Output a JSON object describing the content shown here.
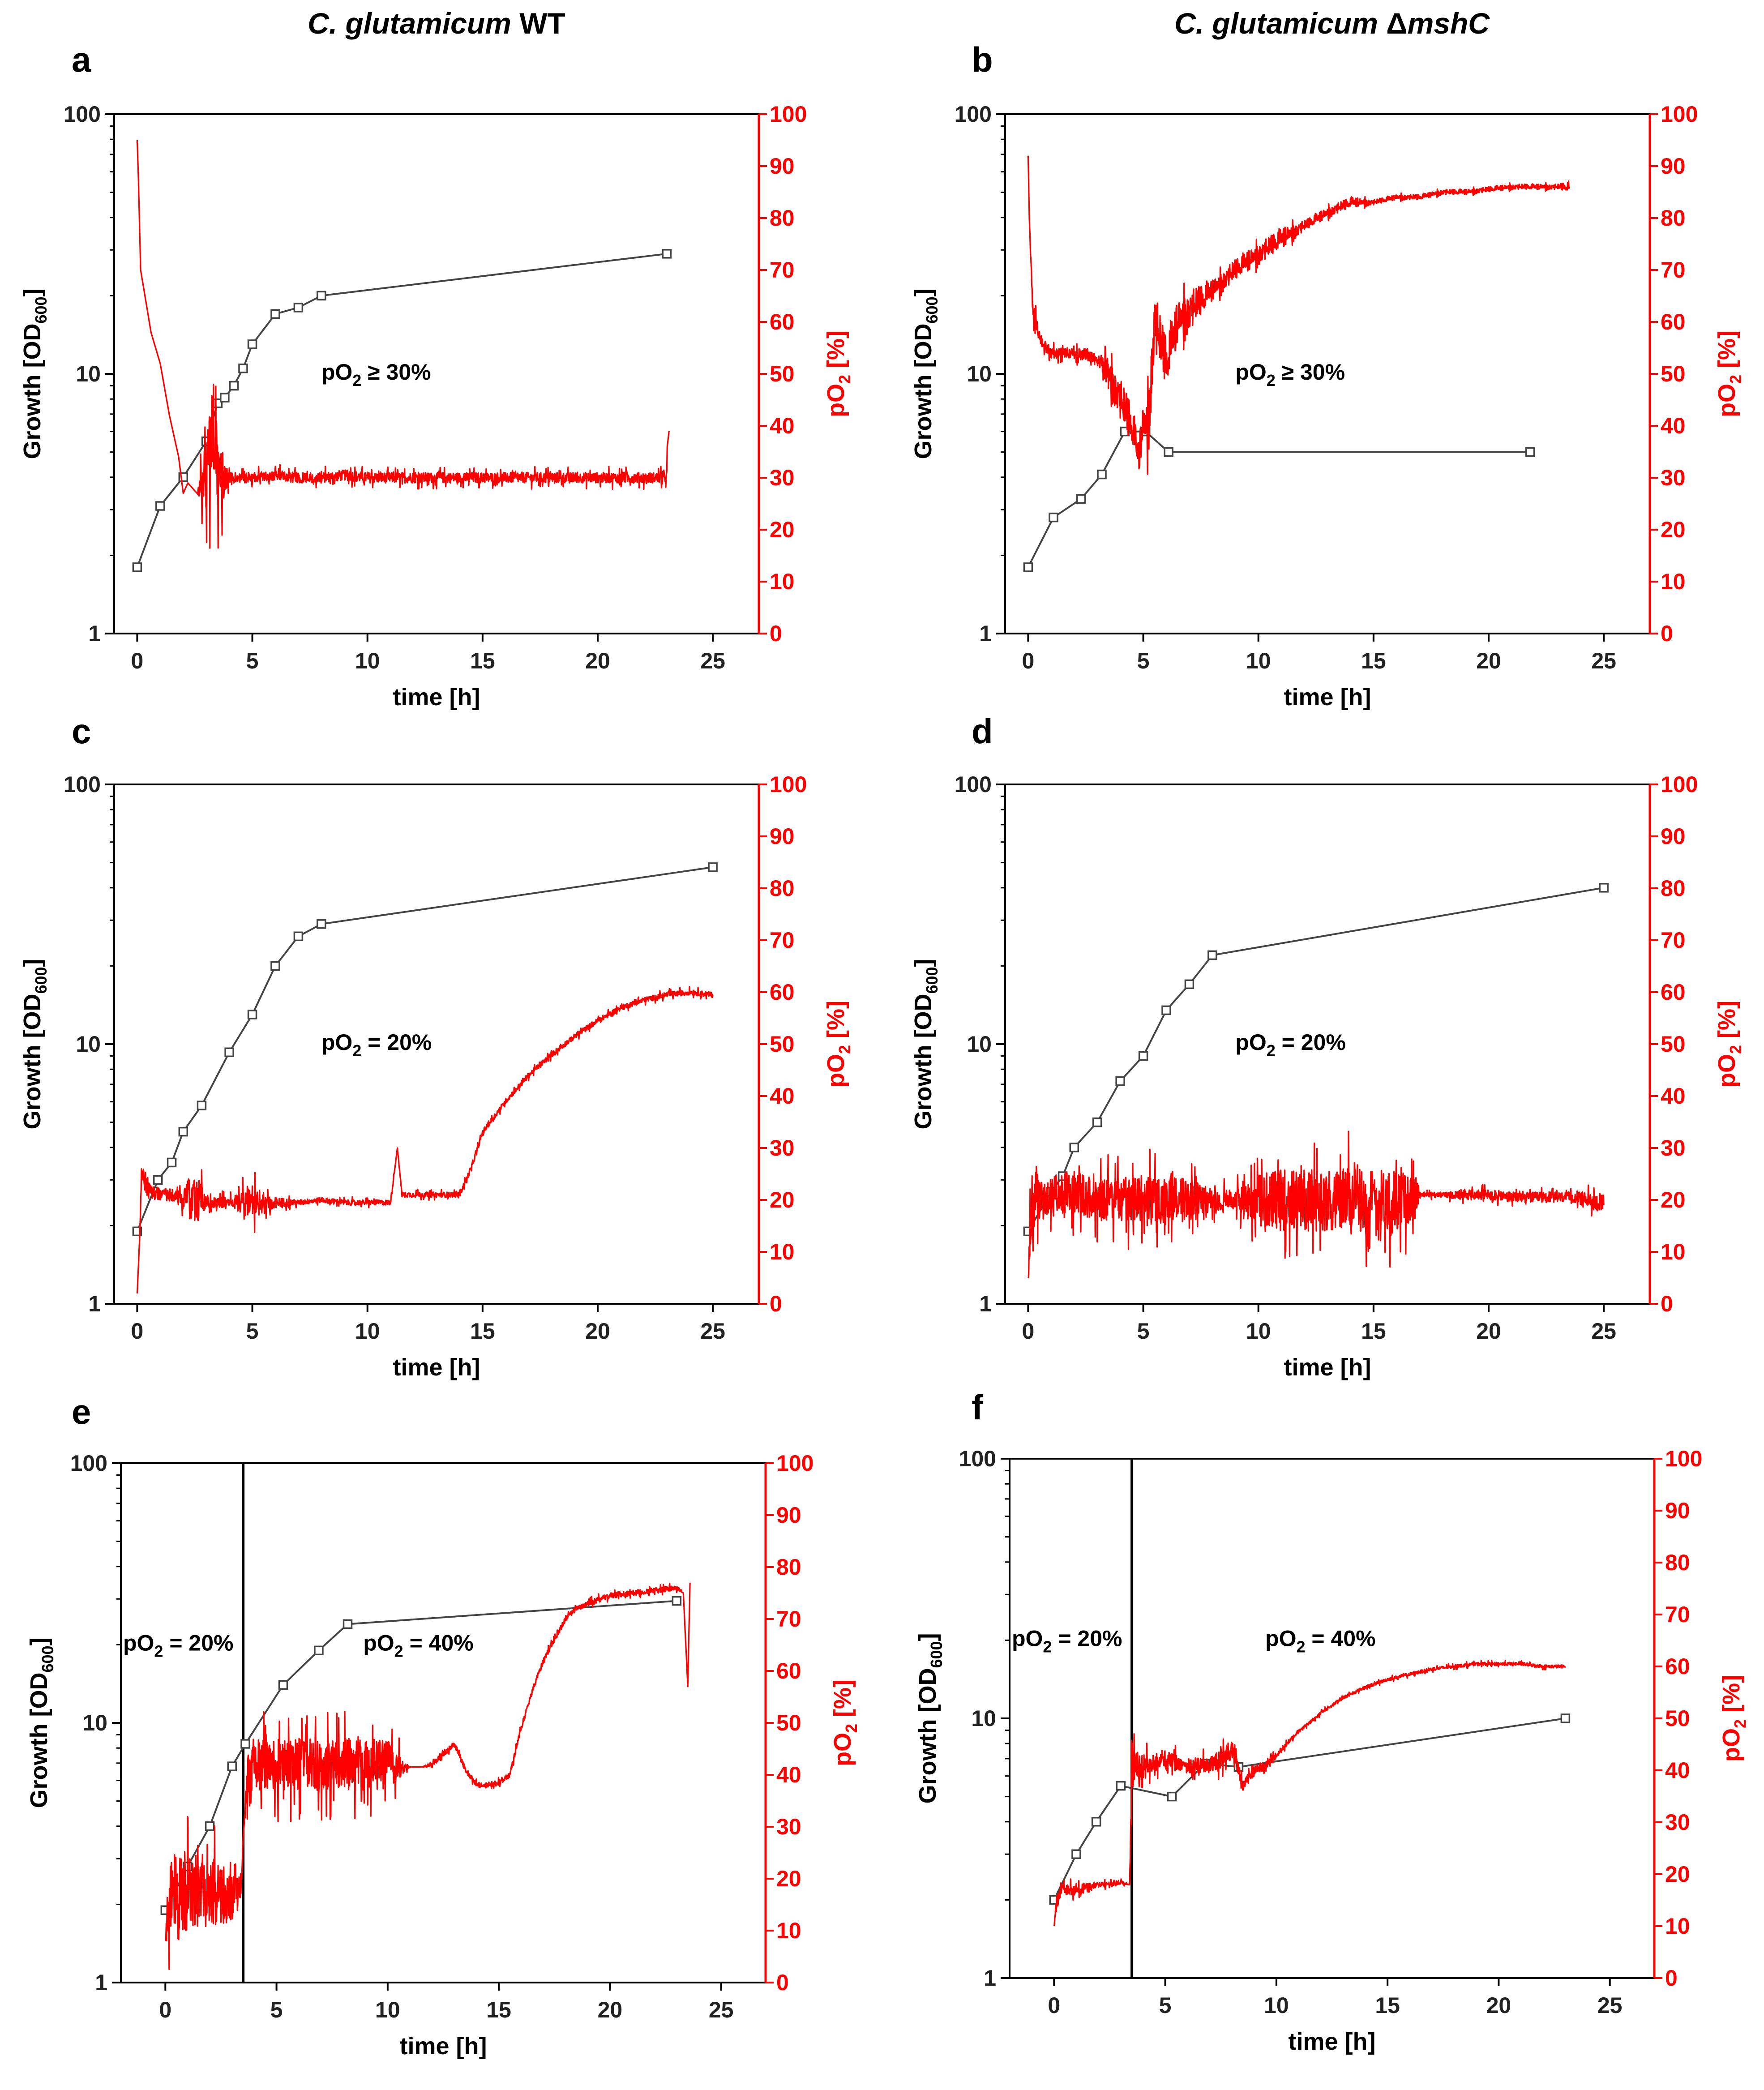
{
  "header": {
    "left": {
      "italic": "C. glutamicum",
      "normal": " WT"
    },
    "right": {
      "italic": "C. glutamicum ",
      "delta": "Δ",
      "gene": "mshC"
    }
  },
  "colors": {
    "growth": "#444444",
    "po2": "#ff0000",
    "frame": "#000000"
  },
  "chart_data": [
    {
      "id": "a",
      "type": "line",
      "title": "",
      "xlabel": "time [h]",
      "ylabel": "Growth [OD600]",
      "y2label": "pO2 [%]",
      "xlim": [
        -1,
        27
      ],
      "xticks": [
        0,
        5,
        10,
        15,
        20,
        25
      ],
      "ylim_log": [
        1,
        100
      ],
      "yticks": [
        "1",
        "10",
        "100"
      ],
      "y2lim": [
        0,
        100
      ],
      "y2ticks": [
        0,
        10,
        20,
        30,
        40,
        50,
        60,
        70,
        80,
        90,
        100
      ],
      "annotations": [
        {
          "text": "pO2 ≥ 30%",
          "x": 8,
          "y": 9.5
        }
      ],
      "separator_x": null,
      "series": [
        {
          "name": "Growth [OD600]",
          "axis": "left",
          "marker": "square",
          "x": [
            0,
            1,
            2,
            3,
            3.5,
            3.8,
            4.2,
            4.6,
            5,
            6,
            7,
            8,
            23
          ],
          "y": [
            1.8,
            3.1,
            4.0,
            5.5,
            7.7,
            8.1,
            9,
            10.5,
            13,
            17,
            18,
            20,
            29
          ]
        },
        {
          "name": "pO2 [%]",
          "axis": "right",
          "noisy": true,
          "x": [
            0,
            0.05,
            0.15,
            0.3,
            0.6,
            1,
            1.4,
            1.8,
            2,
            2.2,
            2.6,
            3,
            3.3,
            3.6,
            3.8,
            4,
            5,
            6,
            7,
            8,
            9,
            10,
            11,
            12,
            13,
            14,
            15,
            16,
            17,
            18,
            19,
            20,
            21,
            22,
            23,
            23.02,
            23.1
          ],
          "y": [
            95,
            88,
            70,
            66,
            58,
            52,
            42,
            34,
            27,
            29,
            27,
            31,
            38,
            30,
            30,
            30,
            30,
            30.5,
            30,
            30,
            30.5,
            30,
            30,
            30,
            30,
            30,
            30,
            30,
            30,
            30,
            30,
            30,
            30,
            30,
            30,
            36,
            39
          ],
          "noise": [
            0,
            0,
            0,
            0,
            0,
            0,
            0,
            0,
            0,
            0,
            0,
            7,
            10,
            7,
            3,
            1,
            1,
            1,
            1,
            1,
            1,
            1,
            1,
            1,
            1,
            1,
            1,
            1,
            1,
            1,
            1,
            1,
            1,
            1,
            1,
            0,
            0
          ]
        }
      ]
    },
    {
      "id": "b",
      "type": "line",
      "title": "",
      "xlabel": "time [h]",
      "ylabel": "Growth [OD600]",
      "y2label": "pO2 [%]",
      "xlim": [
        -1,
        27
      ],
      "xticks": [
        0,
        5,
        10,
        15,
        20,
        25
      ],
      "ylim_log": [
        1,
        100
      ],
      "yticks": [
        "1",
        "10",
        "100"
      ],
      "y2lim": [
        0,
        100
      ],
      "y2ticks": [
        0,
        10,
        20,
        30,
        40,
        50,
        60,
        70,
        80,
        90,
        100
      ],
      "annotations": [
        {
          "text": "pO2 ≥ 30%",
          "x": 9,
          "y": 9.5
        }
      ],
      "separator_x": null,
      "series": [
        {
          "name": "Growth [OD600]",
          "axis": "left",
          "marker": "square",
          "x": [
            0,
            1.1,
            2.3,
            3.2,
            4.2,
            5.1,
            6.1,
            21.8
          ],
          "y": [
            1.8,
            2.8,
            3.3,
            4.1,
            6,
            6,
            5,
            5
          ]
        },
        {
          "name": "pO2 [%]",
          "axis": "right",
          "noisy": true,
          "x": [
            0,
            0.05,
            0.2,
            0.5,
            1,
            2,
            3,
            3.5,
            4,
            4.5,
            4.8,
            5,
            5.2,
            5.5,
            5.8,
            6,
            6.5,
            7,
            8,
            9,
            10,
            11,
            12,
            13,
            14,
            15,
            16,
            17,
            18,
            19,
            20,
            21,
            22,
            23,
            23.5
          ],
          "y": [
            92,
            80,
            62,
            57,
            54,
            54,
            53,
            50,
            45,
            40,
            34,
            40,
            40,
            60,
            55,
            52,
            60,
            62,
            66,
            70,
            73,
            76,
            78.5,
            81,
            83,
            83,
            84,
            84,
            85,
            85,
            85.5,
            86,
            86,
            86,
            86
          ],
          "noise": [
            0,
            0,
            2,
            1,
            1,
            1,
            1,
            3,
            4,
            4,
            3,
            4,
            6,
            6,
            5,
            5,
            4,
            4,
            2,
            2,
            2,
            2,
            1,
            1,
            1,
            0.5,
            0.5,
            0.5,
            0.5,
            0.5,
            0.5,
            0.5,
            0.5,
            0.5,
            1
          ]
        }
      ]
    },
    {
      "id": "c",
      "type": "line",
      "title": "",
      "xlabel": "time [h]",
      "ylabel": "Growth [OD600]",
      "y2label": "pO2 [%]",
      "xlim": [
        -1,
        27
      ],
      "xticks": [
        0,
        5,
        10,
        15,
        20,
        25
      ],
      "ylim_log": [
        1,
        100
      ],
      "yticks": [
        "1",
        "10",
        "100"
      ],
      "y2lim": [
        0,
        100
      ],
      "y2ticks": [
        0,
        10,
        20,
        30,
        40,
        50,
        60,
        70,
        80,
        90,
        100
      ],
      "annotations": [
        {
          "text": "pO2 = 20%",
          "x": 8,
          "y": 9.5
        }
      ],
      "separator_x": null,
      "series": [
        {
          "name": "Growth [OD600]",
          "axis": "left",
          "marker": "square",
          "x": [
            0,
            0.9,
            1.5,
            2,
            2.8,
            4,
            5,
            6,
            7,
            8,
            25
          ],
          "y": [
            1.9,
            3.0,
            3.5,
            4.6,
            5.8,
            9.3,
            13,
            20,
            26,
            29,
            48
          ]
        },
        {
          "name": "pO2 [%]",
          "axis": "right",
          "noisy": true,
          "x": [
            0,
            0.1,
            0.2,
            0.5,
            1,
            2,
            2.5,
            3,
            4,
            5,
            6,
            7,
            8,
            9,
            10,
            11,
            11.3,
            11.5,
            12,
            13,
            14,
            14.5,
            15,
            16,
            17,
            18,
            19,
            20,
            21,
            22,
            23,
            24,
            25
          ],
          "y": [
            2,
            12,
            25,
            22,
            21,
            21,
            20,
            19.5,
            19.5,
            19.5,
            19.5,
            19.5,
            20,
            19.5,
            19.5,
            19.5,
            30,
            21,
            21,
            21,
            21,
            26,
            33,
            39,
            44,
            48,
            51.5,
            54.5,
            57,
            58.5,
            59.5,
            60,
            59.5
          ],
          "noise": [
            0,
            0,
            2,
            2,
            1,
            2,
            6,
            1,
            1,
            3,
            1,
            0.5,
            0.5,
            0.5,
            0.5,
            0.5,
            0,
            0.5,
            0.5,
            0.5,
            0.5,
            0.5,
            0.5,
            0.5,
            0.5,
            0.5,
            0.5,
            0.5,
            0.5,
            0.5,
            0.5,
            0.5,
            0.5
          ]
        }
      ]
    },
    {
      "id": "d",
      "type": "line",
      "title": "",
      "xlabel": "time [h]",
      "ylabel": "Growth [OD600]",
      "y2label": "pO2 [%]",
      "xlim": [
        -1,
        27
      ],
      "xticks": [
        0,
        5,
        10,
        15,
        20,
        25
      ],
      "ylim_log": [
        1,
        100
      ],
      "yticks": [
        "1",
        "10",
        "100"
      ],
      "y2lim": [
        0,
        100
      ],
      "y2ticks": [
        0,
        10,
        20,
        30,
        40,
        50,
        60,
        70,
        80,
        90,
        100
      ],
      "annotations": [
        {
          "text": "pO2 = 20%",
          "x": 9,
          "y": 9.5
        }
      ],
      "separator_x": null,
      "series": [
        {
          "name": "Growth [OD600]",
          "axis": "left",
          "marker": "square",
          "x": [
            0,
            1,
            1.5,
            2,
            3,
            4,
            5,
            6,
            7,
            8,
            25
          ],
          "y": [
            1.9,
            2.7,
            3.1,
            4.0,
            5.0,
            7.2,
            9.0,
            13.5,
            17,
            22,
            40
          ]
        },
        {
          "name": "pO2 [%]",
          "axis": "right",
          "noisy": true,
          "x": [
            0,
            0.1,
            0.3,
            0.6,
            1,
            2,
            3,
            4,
            5,
            6,
            7,
            8,
            9,
            10,
            11,
            12,
            13,
            14,
            15,
            16,
            16.8,
            17,
            18,
            19,
            20,
            21,
            22,
            23,
            24,
            25
          ],
          "y": [
            5,
            14,
            22,
            20,
            21,
            21.5,
            20,
            20,
            20,
            20,
            20,
            20,
            20,
            20,
            20,
            20,
            20,
            20,
            20,
            20,
            20,
            21,
            21,
            21,
            21,
            20.5,
            20.5,
            20.5,
            20.5,
            19
          ],
          "noise": [
            0,
            5,
            6,
            4,
            4,
            4,
            4,
            4,
            5,
            5,
            4,
            2,
            2,
            5,
            6,
            6,
            6,
            6,
            6,
            6,
            4,
            0.5,
            0.5,
            1,
            1,
            1,
            1,
            1,
            1,
            2
          ]
        }
      ]
    },
    {
      "id": "e",
      "type": "line",
      "title": "",
      "xlabel": "time [h]",
      "ylabel": "Growth [OD600]",
      "y2label": "pO2 [%]",
      "xlim": [
        -2,
        27
      ],
      "xticks": [
        0,
        5,
        10,
        15,
        20,
        25
      ],
      "ylim_log": [
        1,
        100
      ],
      "yticks": [
        "1",
        "10",
        "100"
      ],
      "y2lim": [
        0,
        100
      ],
      "y2ticks": [
        0,
        10,
        20,
        30,
        40,
        50,
        60,
        70,
        80,
        90,
        100
      ],
      "annotations": [
        {
          "text": "pO2 = 20%",
          "x": -1.9,
          "y": 19
        },
        {
          "text": "pO2 = 40%",
          "x": 8.9,
          "y": 19
        }
      ],
      "separator_x": 3.5,
      "series": [
        {
          "name": "Growth [OD600]",
          "axis": "left",
          "marker": "square",
          "x": [
            0,
            1,
            2,
            3,
            3.6,
            5.3,
            6.9,
            8.2,
            23
          ],
          "y": [
            1.9,
            2.8,
            4.0,
            6.8,
            8.3,
            14,
            19,
            24,
            29.5
          ]
        },
        {
          "name": "pO2 [%]",
          "axis": "right",
          "noisy": true,
          "x": [
            0,
            0.1,
            0.3,
            0.6,
            1,
            1.5,
            2,
            2.5,
            3,
            3.4,
            3.5,
            3.7,
            4,
            5,
            6,
            7,
            8,
            9,
            10,
            11,
            11.5,
            12,
            12.5,
            13,
            13.5,
            14,
            14.5,
            15,
            15.5,
            16,
            16.5,
            17,
            17.5,
            18,
            18.5,
            19,
            20,
            21,
            22,
            23,
            23.3,
            23.5,
            23.6
          ],
          "y": [
            8,
            14,
            18,
            17,
            17,
            18,
            17.5,
            17,
            17,
            17,
            28,
            40,
            42,
            42,
            42,
            42,
            42,
            42,
            42,
            41.5,
            41.5,
            42,
            44,
            46,
            41,
            38,
            38,
            38.5,
            40,
            49,
            56,
            62,
            66,
            70,
            72,
            73,
            74.5,
            75,
            75.5,
            76,
            75,
            57,
            77
          ],
          "noise": [
            0,
            6,
            8,
            7,
            7,
            7,
            7,
            6,
            5,
            3,
            0,
            4,
            5,
            5,
            5,
            5,
            5,
            5,
            5,
            0,
            0,
            0.5,
            0.5,
            0.5,
            0.5,
            0.5,
            0.5,
            0.5,
            0.5,
            0.5,
            0.5,
            0.5,
            0.5,
            0.5,
            0.5,
            0.5,
            0.5,
            0.5,
            0.5,
            0.5,
            0,
            0,
            0
          ]
        }
      ]
    },
    {
      "id": "f",
      "type": "line",
      "title": "",
      "xlabel": "time [h]",
      "ylabel": "Growth [OD600]",
      "y2label": "pO2 [%]",
      "xlim": [
        -2,
        27
      ],
      "xticks": [
        0,
        5,
        10,
        15,
        20,
        25
      ],
      "ylim_log": [
        1,
        100
      ],
      "yticks": [
        "1",
        "10",
        "100"
      ],
      "y2lim": [
        0,
        100
      ],
      "y2ticks": [
        0,
        10,
        20,
        30,
        40,
        50,
        60,
        70,
        80,
        90,
        100
      ],
      "annotations": [
        {
          "text": "pO2 = 20%",
          "x": -1.9,
          "y": 19
        },
        {
          "text": "pO2 = 40%",
          "x": 9.5,
          "y": 19
        }
      ],
      "separator_x": 3.5,
      "series": [
        {
          "name": "Growth [OD600]",
          "axis": "left",
          "marker": "square",
          "x": [
            0,
            1,
            1.9,
            3,
            5.3,
            6.8,
            8.3,
            23
          ],
          "y": [
            2.0,
            3.0,
            4.0,
            5.5,
            5.0,
            6.7,
            6.5,
            10
          ]
        },
        {
          "name": "pO2 [%]",
          "axis": "right",
          "noisy": true,
          "x": [
            0,
            0.1,
            0.3,
            1,
            1.5,
            2,
            2.5,
            3,
            3.4,
            3.5,
            3.6,
            4,
            5,
            6,
            7,
            7.5,
            8,
            8.5,
            9,
            9.5,
            10,
            11,
            12,
            13,
            14,
            15,
            16,
            17,
            18,
            19,
            20,
            21,
            22,
            23
          ],
          "y": [
            10,
            14,
            17,
            17,
            17.5,
            18,
            18,
            18.5,
            18,
            40,
            41,
            41,
            42,
            41,
            41,
            42,
            44,
            37,
            40,
            41,
            43,
            47.5,
            51,
            54,
            56,
            57.5,
            58.5,
            59.5,
            60,
            60.5,
            60.5,
            60.5,
            60,
            60
          ],
          "noise": [
            0,
            2,
            1,
            1,
            1,
            0.5,
            0.5,
            0.5,
            0,
            6,
            3,
            2,
            1.5,
            1.5,
            1.5,
            2,
            2,
            1,
            1,
            1,
            0.5,
            0.3,
            0.3,
            0.3,
            0.3,
            0.3,
            0.3,
            0.3,
            0.3,
            0.3,
            0.3,
            0.3,
            0.3,
            0.3
          ]
        }
      ]
    }
  ]
}
